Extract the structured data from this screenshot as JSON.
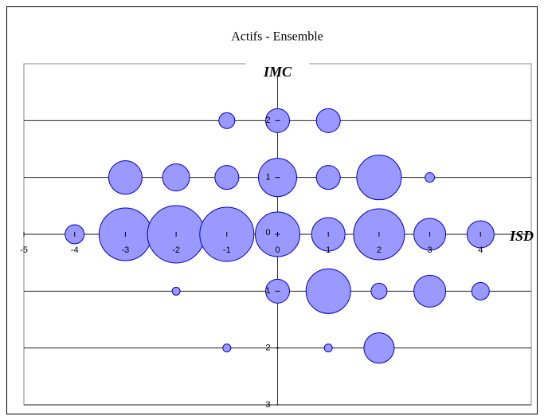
{
  "chart_data": {
    "type": "bubble",
    "title": "Actifs - Ensemble",
    "x_label": "ISD",
    "y_label": "IMC",
    "xlim": [
      -5,
      5
    ],
    "ylim": [
      -3,
      3
    ],
    "xticks": [
      -5,
      -4,
      -3,
      -2,
      -1,
      0,
      1,
      2,
      3,
      4
    ],
    "yticks": [
      {
        "value": -3,
        "label": "3"
      },
      {
        "value": -2,
        "label": "2"
      },
      {
        "value": -1,
        "label": "1"
      },
      0,
      1,
      2
    ],
    "grid": true,
    "series": [
      {
        "color": "#9999ff",
        "edge_color": "#0000cc",
        "x": [
          -1,
          0,
          1,
          -3,
          -2,
          -1,
          0,
          1,
          2,
          3,
          -4,
          -3,
          -2,
          -1,
          0,
          1,
          2,
          3,
          4,
          -2,
          0,
          1,
          2,
          3,
          4,
          -1,
          1,
          2
        ],
        "values": [
          2,
          2,
          2,
          1,
          1,
          1,
          1,
          1,
          1,
          1,
          0,
          0,
          0,
          0,
          0,
          0,
          0,
          0,
          0,
          -1,
          -1,
          -1,
          -1,
          -1,
          -1,
          -2,
          -2,
          -2
        ],
        "sizes": [
          10,
          15,
          15,
          21,
          17,
          15,
          24,
          15,
          28,
          6,
          12,
          33,
          36,
          34,
          28,
          21,
          32,
          20,
          17,
          5,
          15,
          28,
          10,
          20,
          11,
          5,
          5,
          19
        ]
      }
    ]
  }
}
